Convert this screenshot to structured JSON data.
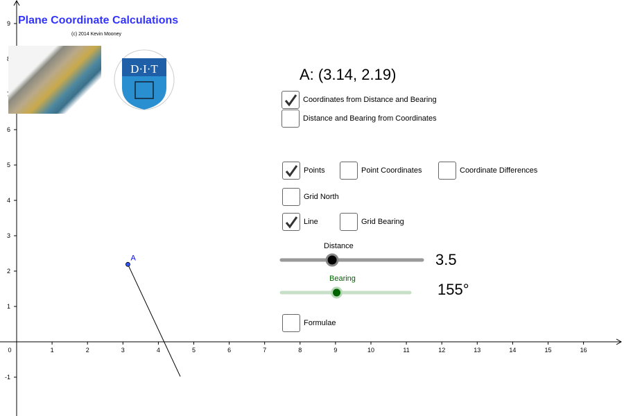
{
  "header": {
    "title": "Plane Coordinate Calculations",
    "copyright": "(c) 2014 Kevin Mooney",
    "logo_text": "DIT"
  },
  "point": {
    "label": "A",
    "readout": "A: (3.14, 2.19)",
    "x": 3.14,
    "y": 2.19
  },
  "line": {
    "distance": 3.5,
    "bearing_deg": 155
  },
  "axes": {
    "x_ticks": [
      0,
      1,
      2,
      3,
      4,
      5,
      6,
      7,
      8,
      9,
      10,
      11,
      12,
      13,
      14,
      15,
      16
    ],
    "y_ticks": [
      -1,
      1,
      2,
      3,
      4,
      5,
      6,
      7,
      8,
      9
    ]
  },
  "checkboxes": [
    {
      "label": "Coordinates from Distance and Bearing",
      "checked": true
    },
    {
      "label": "Distance and Bearing from Coordinates",
      "checked": false
    },
    {
      "label": "Points",
      "checked": true
    },
    {
      "label": "Point Coordinates",
      "checked": false
    },
    {
      "label": "Coordinate Differences",
      "checked": false
    },
    {
      "label": "Grid North",
      "checked": false
    },
    {
      "label": "Line",
      "checked": true
    },
    {
      "label": "Grid Bearing",
      "checked": false
    },
    {
      "label": "Formulae",
      "checked": false
    }
  ],
  "sliders": {
    "distance": {
      "label": "Distance",
      "value_text": "3.5",
      "value": 3.5,
      "fraction": 0.36,
      "color": "#000000",
      "track": "#999999"
    },
    "bearing": {
      "label": "Bearing",
      "value_text": "155°",
      "value": 155,
      "fraction": 0.43,
      "color": "#006400",
      "track": "#c8e0c8"
    }
  },
  "colors": {
    "title": "#3333ff",
    "point": "#0000ff"
  }
}
